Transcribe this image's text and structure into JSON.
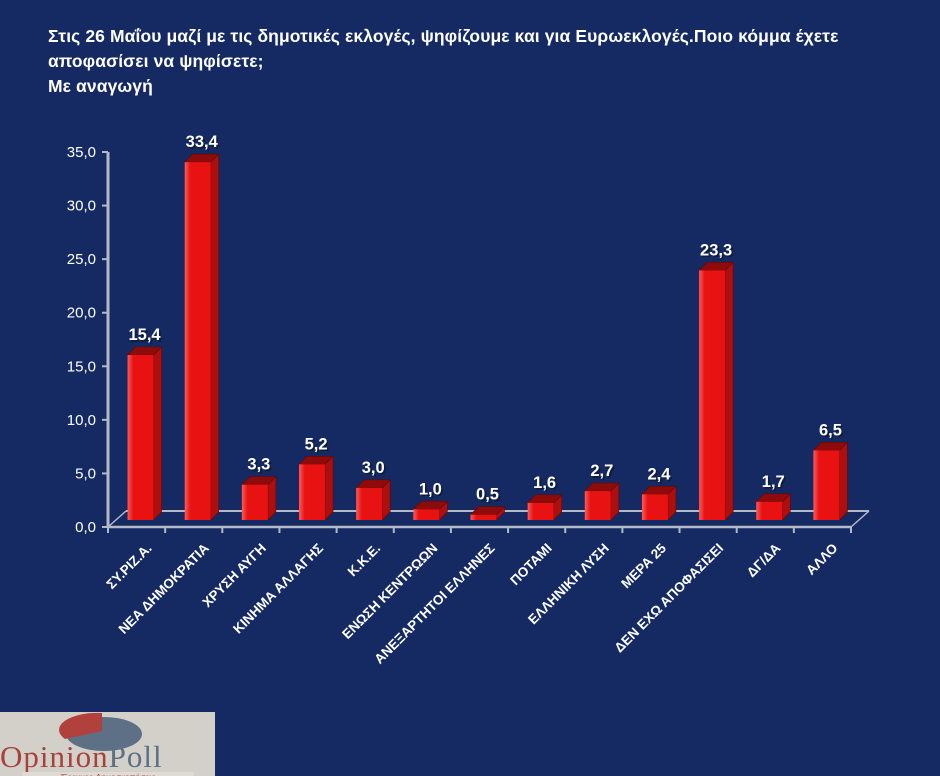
{
  "page": {
    "background": "#152a62"
  },
  "header": {
    "question": "Στις 26 Μαΐου μαζί με τις δημοτικές εκλογές, ψηφίζουμε και για Ευρωεκλογές.Ποιο κόμμα έχετε αποφασίσει να ψηφίσετε;",
    "note": "Με αναγωγή"
  },
  "chart_data": {
    "type": "bar",
    "style": "3d-column",
    "title": "Στις 26 Μαΐου μαζί με τις δημοτικές εκλογές, ψηφίζουμε και για Ευρωεκλογές.Ποιο κόμμα έχετε αποφασίσει να ψηφίσετε; Με αναγωγή",
    "categories": [
      "ΣΥ.ΡΙΖ.Α.",
      "ΝΕΑ ΔΗΜΟΚΡΑΤΙΑ",
      "ΧΡΥΣΗ ΑΥΓΗ",
      "ΚΙΝΗΜΑ ΑΛΛΑΓΗΣ",
      "Κ.Κ.Ε.",
      "ΕΝΩΣΗ ΚΕΝΤΡΩΩΝ",
      "ΑΝΕΞΑΡΤΗΤΟΙ ΕΛΛΗΝΕΣ",
      "ΠΟΤΑΜΙ",
      "ΕΛΛΗΝΙΚΗ ΛΥΣΗ",
      "ΜΕΡΑ 25",
      "ΔΕΝ ΕΧΩ ΑΠΟΦΑΣΙΣΕΙ",
      "ΔΓ/ΔΑ",
      "ΑΛΛΟ"
    ],
    "values": [
      15.4,
      33.4,
      3.3,
      5.2,
      3.0,
      1.0,
      0.5,
      1.6,
      2.7,
      2.4,
      23.3,
      1.7,
      6.5
    ],
    "value_labels": [
      "15,4",
      "33,4",
      "3,3",
      "5,2",
      "3,0",
      "1,0",
      "0,5",
      "1,6",
      "2,7",
      "2,4",
      "23,3",
      "1,7",
      "6,5"
    ],
    "xlabel": "",
    "ylabel": "",
    "ylim": [
      0,
      35
    ],
    "ytick_step": 5,
    "ytick_labels": [
      "0,0",
      "5,0",
      "10,0",
      "15,0",
      "20,0",
      "25,0",
      "30,0",
      "35,0"
    ],
    "grid": false,
    "legend": "none",
    "colors": {
      "bar_front": "#e81212",
      "bar_front_highlight": "#ff5a5a",
      "bar_top": "#8d0b0b",
      "bar_side": "#ad0e0e",
      "bar_stroke": "#650606",
      "axis": "#b4b9c6",
      "tick_label": "#ffffff",
      "value_label": "#ffffff",
      "value_label_shadow": "#101c3a",
      "category_label": "#ffffff"
    }
  },
  "logo": {
    "brand_primary": "Opinion",
    "brand_secondary": "Poll",
    "tagline": "Έρευνες-Δημοσκοπήσεις",
    "colors": {
      "box": "#d3d0ca",
      "pie_main": "#5d7085",
      "pie_slice": "#b0413c",
      "brand_primary": "#a8403b",
      "brand_secondary": "#5d7085",
      "tagline_bar": "#dedbd5",
      "tagline_text": "#b04540"
    }
  }
}
